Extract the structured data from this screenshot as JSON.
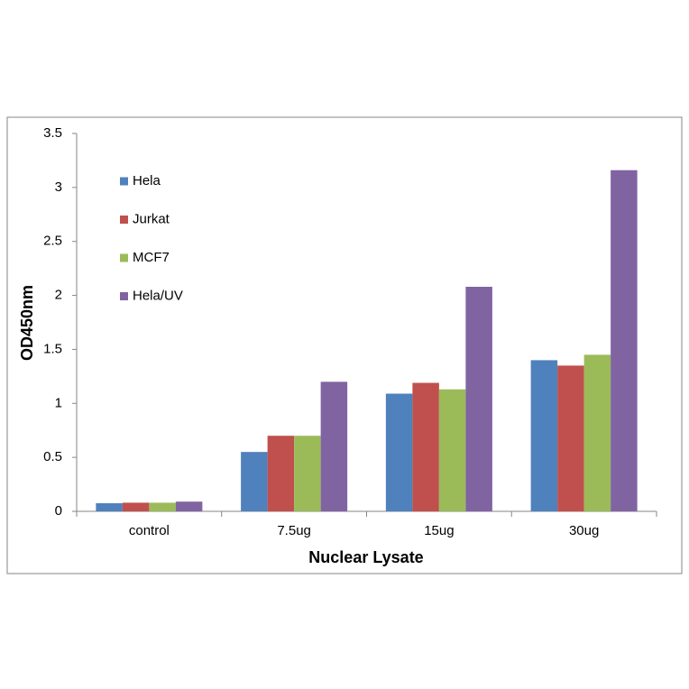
{
  "chart_data": {
    "type": "bar",
    "x_label": "Nuclear Lysate",
    "y_label": "OD450nm",
    "categories": [
      "control",
      "7.5ug",
      "15ug",
      "30ug"
    ],
    "series": [
      {
        "name": "Hela",
        "color": "#4f81bd",
        "values": [
          0.075,
          0.55,
          1.09,
          1.4
        ]
      },
      {
        "name": "Jurkat",
        "color": "#c0504d",
        "values": [
          0.08,
          0.7,
          1.19,
          1.35
        ]
      },
      {
        "name": "MCF7",
        "color": "#9bbb59",
        "values": [
          0.08,
          0.7,
          1.13,
          1.45
        ]
      },
      {
        "name": "Hela/UV",
        "color": "#8064a2",
        "values": [
          0.09,
          1.2,
          2.08,
          3.16
        ]
      }
    ],
    "ylim": [
      0,
      3.5
    ],
    "yticks": [
      0,
      0.5,
      1,
      1.5,
      2,
      2.5,
      3,
      3.5
    ],
    "grid": false,
    "legend": "upper left"
  }
}
